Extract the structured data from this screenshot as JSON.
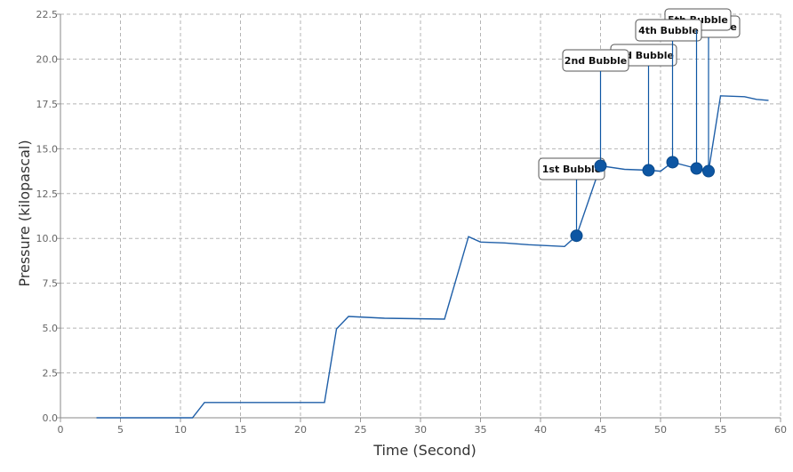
{
  "chart_data": {
    "type": "line",
    "xlabel": "Time (Second)",
    "ylabel": "Pressure (kilopascal)",
    "xlim": [
      0,
      60
    ],
    "ylim": [
      0,
      22.5
    ],
    "x_ticks": [
      0,
      5,
      10,
      15,
      20,
      25,
      30,
      35,
      40,
      45,
      50,
      55,
      60
    ],
    "x_tick_labels": [
      "0",
      "5",
      "10",
      "15",
      "20",
      "25",
      "30",
      "35",
      "40",
      "45",
      "50",
      "55",
      "60"
    ],
    "y_ticks": [
      0,
      2.5,
      5,
      7.5,
      10,
      12.5,
      15,
      17.5,
      20,
      22.5
    ],
    "y_tick_labels": [
      "0.0",
      "2.5",
      "5.0",
      "7.5",
      "10.0",
      "12.5",
      "15.0",
      "17.5",
      "20.0",
      "22.5"
    ],
    "grid": true,
    "line_color": "#1f5fa8",
    "marker_color": "#0d56a3",
    "series": [
      {
        "x": [
          3,
          11,
          12,
          22,
          23,
          24,
          27,
          32,
          34,
          35,
          37,
          39,
          42,
          43,
          45,
          47,
          49,
          50,
          51,
          53,
          54,
          55,
          57,
          58,
          59
        ],
        "y": [
          0,
          0,
          0.85,
          0.85,
          4.95,
          5.65,
          5.55,
          5.5,
          10.1,
          9.8,
          9.75,
          9.65,
          9.55,
          10.15,
          14.05,
          13.85,
          13.8,
          13.75,
          14.25,
          13.9,
          13.75,
          17.95,
          17.9,
          17.75,
          17.7
        ]
      }
    ],
    "annotations": [
      {
        "text": "1st Bubble",
        "x": 43,
        "y": 10.15
      },
      {
        "text": "2nd Bubble",
        "x": 45,
        "y": 14.05
      },
      {
        "text": "3rd Bubble",
        "x": 49,
        "y": 13.8
      },
      {
        "text": "4th Bubble",
        "x": 51,
        "y": 14.25
      },
      {
        "text": "5th Bubble",
        "x": 53,
        "y": 13.9
      },
      {
        "text": "6th Bubble",
        "x": 54,
        "y": 13.75
      }
    ]
  }
}
